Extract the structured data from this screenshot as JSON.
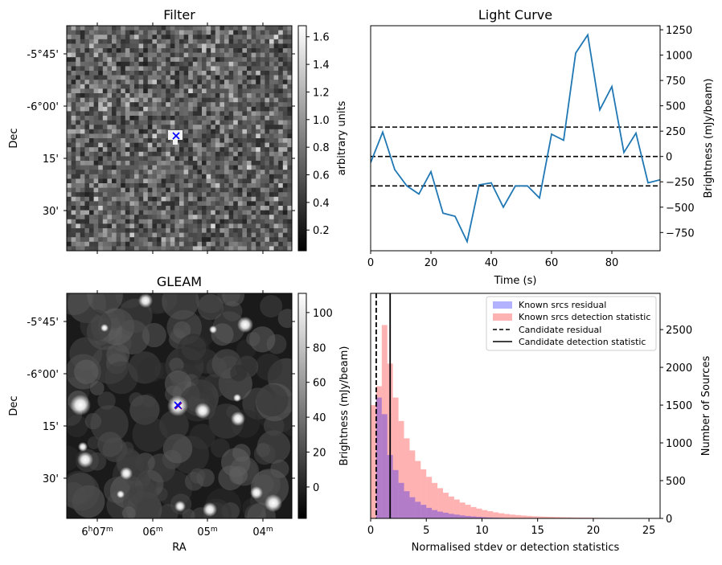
{
  "colors": {
    "line": "#1f77b4",
    "marker": "#0000ff",
    "marker_alt": "#800080",
    "hist_residual": "#0000ff",
    "hist_detection": "#ff0000"
  },
  "panels": {
    "filter": {
      "title": "Filter",
      "ylabel": "Dec",
      "y_ticks": [
        "-5°45'",
        "-6°00'",
        "15'",
        "30'"
      ],
      "colorbar": {
        "label": "arbitrary units",
        "ticks": [
          "0.2",
          "0.4",
          "0.6",
          "0.8",
          "1.0",
          "1.2",
          "1.4",
          "1.6"
        ],
        "range": [
          0.05,
          1.68
        ]
      },
      "marker": "x"
    },
    "gleam": {
      "title": "GLEAM",
      "xlabel": "RA",
      "ylabel": "Dec",
      "x_ticks": [
        {
          "h": "6",
          "m": "07"
        },
        {
          "h": "",
          "m": "06"
        },
        {
          "h": "",
          "m": "05"
        },
        {
          "h": "",
          "m": "04"
        }
      ],
      "y_ticks": [
        "-5°45'",
        "-6°00'",
        "15'",
        "30'"
      ],
      "colorbar": {
        "label": "Brightness (mJy/beam)",
        "ticks": [
          "0",
          "20",
          "40",
          "60",
          "80",
          "100"
        ],
        "range": [
          -18,
          111
        ]
      },
      "marker": "x"
    }
  },
  "chart_data": [
    {
      "type": "line",
      "title": "Light Curve",
      "xlabel": "Time (s)",
      "ylabel": "Brightness (mJy/beam)",
      "xlim": [
        0,
        96
      ],
      "ylim": [
        -930,
        1290
      ],
      "x_ticks": [
        0,
        20,
        40,
        60,
        80
      ],
      "y_ticks": [
        -750,
        -500,
        -250,
        0,
        250,
        500,
        750,
        1000,
        1250
      ],
      "x": [
        0,
        4,
        8,
        12,
        16,
        20,
        24,
        28,
        32,
        36,
        40,
        44,
        48,
        52,
        56,
        60,
        64,
        68,
        72,
        76,
        80,
        84,
        88,
        92,
        96
      ],
      "series": [
        {
          "values": [
            -60,
            240,
            -130,
            -290,
            -370,
            -150,
            -560,
            -590,
            -840,
            -280,
            -260,
            -500,
            -290,
            -290,
            -410,
            220,
            160,
            1020,
            1200,
            460,
            690,
            40,
            230,
            -260,
            -230
          ]
        }
      ],
      "hlines": [
        {
          "y": 290,
          "style": "dashed"
        },
        {
          "y": 0,
          "style": "dashed"
        },
        {
          "y": -290,
          "style": "dashed"
        }
      ]
    },
    {
      "type": "bar",
      "xlabel": "Normalised stdev or detection statistics",
      "ylabel": "Number of Sources",
      "xlim": [
        0,
        26
      ],
      "ylim": [
        0,
        2980
      ],
      "x_ticks": [
        0,
        5,
        10,
        15,
        20,
        25
      ],
      "y_ticks": [
        0,
        500,
        1000,
        1500,
        2000,
        2500
      ],
      "bin_width": 0.5,
      "series": [
        {
          "name": "Known srcs residual",
          "bin_start": 0,
          "values": [
            0,
            1600,
            1380,
            840,
            640,
            470,
            360,
            280,
            220,
            180,
            140,
            110,
            90,
            75,
            60,
            50,
            40,
            32,
            26,
            20,
            16,
            12,
            10,
            8,
            6,
            5,
            4,
            3,
            2,
            2,
            1,
            1
          ]
        },
        {
          "name": "Known srcs detection statistic",
          "bin_start": 0,
          "values": [
            1500,
            1750,
            2560,
            2050,
            1600,
            1290,
            1060,
            900,
            760,
            650,
            550,
            470,
            400,
            340,
            290,
            250,
            210,
            180,
            150,
            130,
            110,
            95,
            80,
            68,
            58,
            50,
            44,
            38,
            33,
            28,
            25,
            22,
            20,
            18,
            16,
            14,
            12,
            11,
            10,
            9,
            8,
            7,
            6,
            6,
            5,
            5,
            4,
            4,
            3,
            3,
            3
          ]
        }
      ],
      "vlines": [
        {
          "name": "Candidate residual",
          "x": 0.5,
          "style": "dashed"
        },
        {
          "name": "Candidate detection statistic",
          "x": 1.75,
          "style": "solid"
        }
      ],
      "legend": "top-right"
    }
  ]
}
